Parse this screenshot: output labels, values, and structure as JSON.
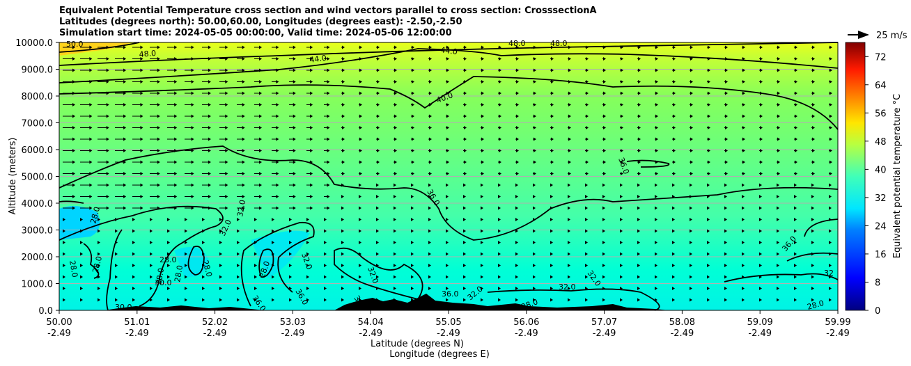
{
  "title": {
    "line1": "Equivalent Potential Temperature cross section and wind vectors parallel to cross section: CrosssectionA",
    "line2": "Latitudes (degrees north): 50.00,60.00, Longitudes (degrees east): -2.50,-2.50",
    "line3": "Simulation start time: 2024-05-05 00:00:00, Valid time: 2024-05-06 12:00:00"
  },
  "chart_data": {
    "type": "heatmap",
    "xlabel": "Latitude (degrees N)",
    "xlabel2": "Longitude (degrees E)",
    "ylabel": "Altitude (meters)",
    "ylim": [
      0,
      10000
    ],
    "y_ticks": [
      "0.0",
      "1000.0",
      "2000.0",
      "3000.0",
      "4000.0",
      "5000.0",
      "6000.0",
      "7000.0",
      "8000.0",
      "9000.0",
      "10000.0"
    ],
    "x_ticks": [
      {
        "lat": "50.00",
        "lon": "-2.49"
      },
      {
        "lat": "51.01",
        "lon": "-2.49"
      },
      {
        "lat": "52.02",
        "lon": "-2.49"
      },
      {
        "lat": "53.03",
        "lon": "-2.49"
      },
      {
        "lat": "54.04",
        "lon": "-2.49"
      },
      {
        "lat": "55.05",
        "lon": "-2.49"
      },
      {
        "lat": "56.06",
        "lon": "-2.49"
      },
      {
        "lat": "57.07",
        "lon": "-2.49"
      },
      {
        "lat": "58.08",
        "lon": "-2.49"
      },
      {
        "lat": "59.09",
        "lon": "-2.49"
      },
      {
        "lat": "59.99",
        "lon": "-2.49"
      }
    ],
    "grid": "horizontal",
    "colorbar": {
      "label": "Equivalent potential temperature °C",
      "range": [
        0,
        76
      ],
      "ticks": [
        "0",
        "8",
        "16",
        "24",
        "32",
        "40",
        "48",
        "56",
        "64",
        "72"
      ]
    },
    "wind_key": {
      "label": "25 m/s"
    },
    "contour_labels": [
      "28.0",
      "30.0",
      "32.0",
      "36.0",
      "40.0",
      "44.0",
      "48.0",
      "32"
    ],
    "contour_levels": [
      28,
      32,
      36,
      40,
      44,
      48
    ]
  }
}
